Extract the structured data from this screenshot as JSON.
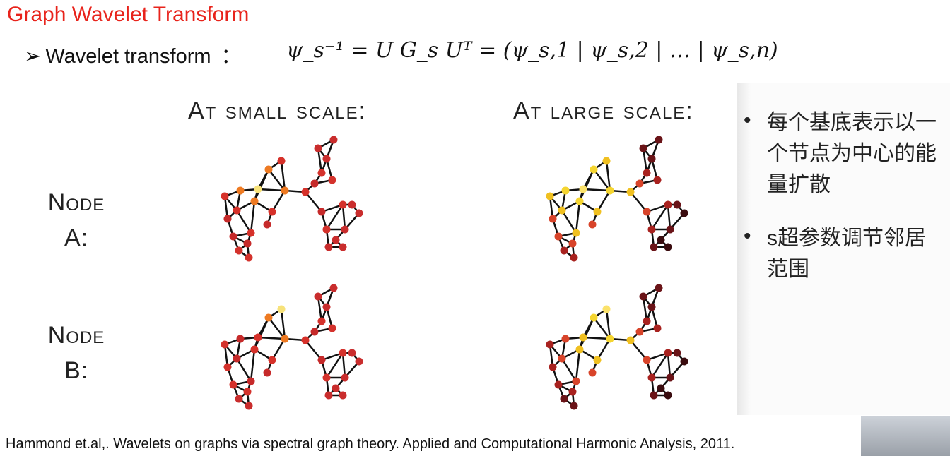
{
  "header": {
    "title": "Graph Wavelet Transform",
    "bullet": "Wavelet transform",
    "colon": "：",
    "formula": "ψ_s⁻¹ = U G_s Uᵀ = (ψ_s,1 | ψ_s,2 | … | ψ_s,n)"
  },
  "figure": {
    "columns": [
      "At small scale:",
      "At large scale:"
    ],
    "rows": [
      "Node A:",
      "Node B:"
    ]
  },
  "notes": [
    "每个基底表示以一个节点为中心的能量扩散",
    "s超参数调节邻居范围"
  ],
  "citation": "Hammond et.al,. Wavelets on graphs via spectral graph theory. Applied and Computational Harmonic Analysis, 2011."
}
